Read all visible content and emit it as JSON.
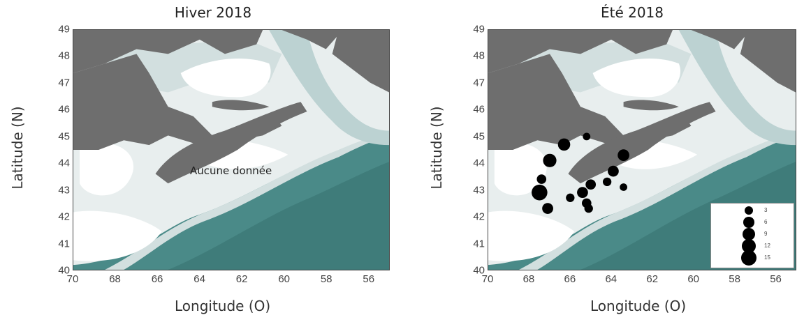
{
  "panels": [
    {
      "title": "Hiver 2018",
      "ylabel": "Latitude (N)",
      "xlabel": "Longitude (O)",
      "note": "Aucune donnée"
    },
    {
      "title": "Été 2018",
      "ylabel": "Latitude (N)",
      "xlabel": "Longitude (O)",
      "legend": [
        "3",
        "6",
        "9",
        "12",
        "15"
      ]
    }
  ],
  "axes": {
    "x_ticks": [
      "70",
      "68",
      "66",
      "64",
      "62",
      "60",
      "58",
      "56"
    ],
    "y_ticks": [
      "49",
      "48",
      "47",
      "46",
      "45",
      "44",
      "43",
      "42",
      "41",
      "40"
    ],
    "x_range": [
      70,
      55
    ],
    "y_range": [
      40,
      49
    ]
  },
  "points": [
    {
      "lon": 67.5,
      "lat": 42.9,
      "value": 15
    },
    {
      "lon": 67.1,
      "lat": 42.3,
      "value": 6
    },
    {
      "lon": 67.4,
      "lat": 43.4,
      "value": 4
    },
    {
      "lon": 67.0,
      "lat": 44.1,
      "value": 10
    },
    {
      "lon": 66.3,
      "lat": 44.7,
      "value": 8
    },
    {
      "lon": 65.2,
      "lat": 45.0,
      "value": 2
    },
    {
      "lon": 66.0,
      "lat": 42.7,
      "value": 3
    },
    {
      "lon": 65.4,
      "lat": 42.9,
      "value": 6
    },
    {
      "lon": 65.2,
      "lat": 42.5,
      "value": 4
    },
    {
      "lon": 65.1,
      "lat": 42.3,
      "value": 3
    },
    {
      "lon": 65.0,
      "lat": 43.2,
      "value": 5
    },
    {
      "lon": 64.2,
      "lat": 43.3,
      "value": 3
    },
    {
      "lon": 63.9,
      "lat": 43.7,
      "value": 6
    },
    {
      "lon": 63.4,
      "lat": 44.3,
      "value": 7
    },
    {
      "lon": 63.4,
      "lat": 43.1,
      "value": 2
    }
  ],
  "colors": {
    "land": "#6e6e6e",
    "shelf_shallow": "#ffffff",
    "shelf": "#e8eeee",
    "shelf_mid": "#d2dfdf",
    "channel": "#bcd2d2",
    "deep": "#4a8a88",
    "deeper": "#3f7c7a",
    "marker": "#000000"
  }
}
